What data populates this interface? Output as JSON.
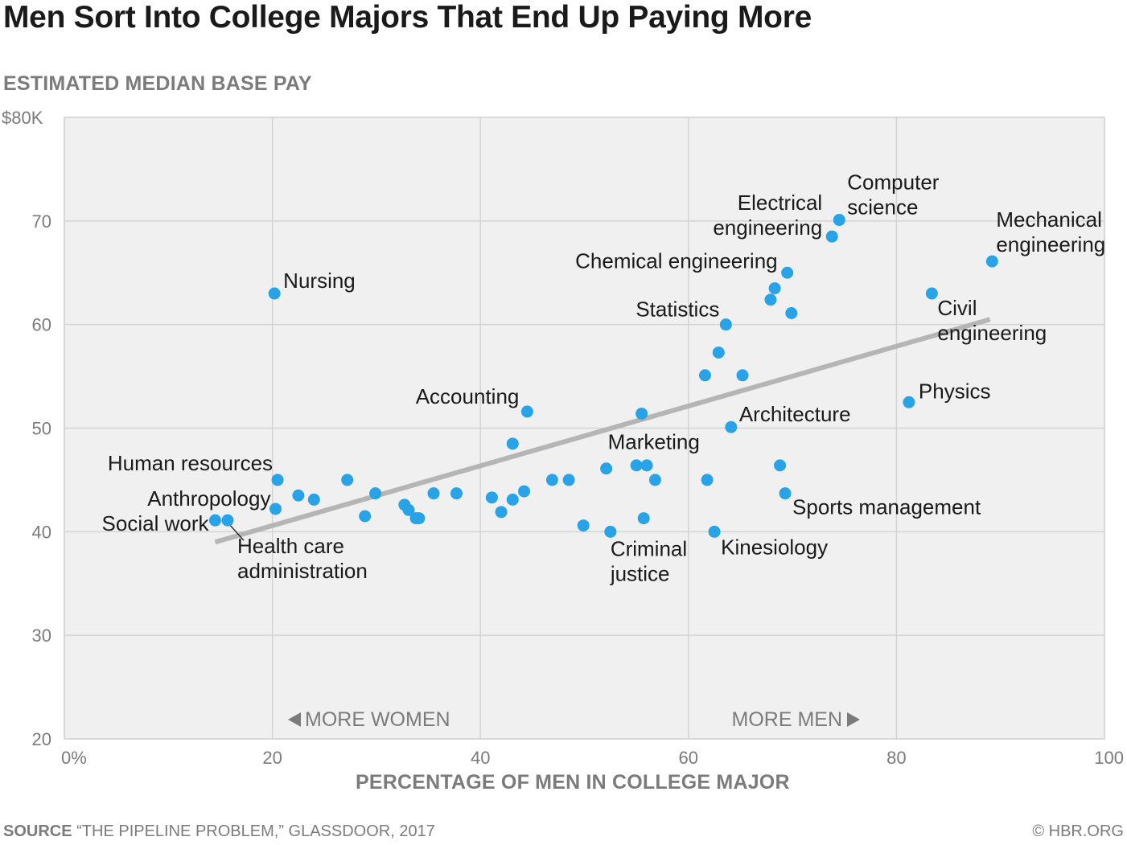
{
  "title": "Men Sort Into College Majors That End Up Paying More",
  "footer": {
    "source_label": "SOURCE",
    "source_text": "“THE PIPELINE PROBLEM,” GLASSDOOR, 2017",
    "credit": "© HBR.ORG"
  },
  "colors": {
    "dot": "#29a3e8",
    "trend": "#b5b5b5",
    "plot_bg": "#f0f0f0",
    "grid": "#d4d4d4"
  },
  "chart_data": {
    "type": "scatter",
    "ylabel": "ESTIMATED MEDIAN BASE PAY",
    "xlabel": "PERCENTAGE OF MEN IN COLLEGE MAJOR",
    "xlim": [
      0,
      100
    ],
    "ylim": [
      20,
      80
    ],
    "x_ticks": [
      {
        "value": 0,
        "label": "0%"
      },
      {
        "value": 20,
        "label": "20"
      },
      {
        "value": 40,
        "label": "40"
      },
      {
        "value": 60,
        "label": "60"
      },
      {
        "value": 80,
        "label": "80"
      },
      {
        "value": 100,
        "label": "100"
      }
    ],
    "y_ticks": [
      {
        "value": 20,
        "label": "20"
      },
      {
        "value": 30,
        "label": "30"
      },
      {
        "value": 40,
        "label": "40"
      },
      {
        "value": 50,
        "label": "50"
      },
      {
        "value": 60,
        "label": "60"
      },
      {
        "value": 70,
        "label": "70"
      },
      {
        "value": 80,
        "label": "$80K"
      }
    ],
    "grid": true,
    "annotations": {
      "more_women": "MORE WOMEN",
      "more_men": "MORE MEN"
    },
    "trend_line": {
      "x": [
        14.5,
        89
      ],
      "y": [
        39,
        60.5
      ]
    },
    "points": [
      {
        "x": 14.5,
        "y": 41.1,
        "label": "Social work",
        "lines": [
          "Social work"
        ],
        "anchor": "end",
        "dx": -8,
        "dy": 13
      },
      {
        "x": 15.7,
        "y": 41.1,
        "label": "Health care administration",
        "lines": [
          "Health care",
          "administration"
        ],
        "anchor": "start",
        "dx": 12,
        "dy": 41,
        "leader": true
      },
      {
        "x": 20.2,
        "y": 63.0,
        "label": "Nursing",
        "lines": [
          "Nursing"
        ],
        "anchor": "start",
        "dx": 11,
        "dy": -7
      },
      {
        "x": 20.5,
        "y": 45.0,
        "label": "Human resources",
        "lines": [
          "Human resources"
        ],
        "anchor": "end",
        "dx": -6,
        "dy": -12
      },
      {
        "x": 20.3,
        "y": 42.2,
        "label": "Anthropology",
        "lines": [
          "Anthropology"
        ],
        "anchor": "end",
        "dx": -6,
        "dy": -4
      },
      {
        "x": 22.5,
        "y": 43.5
      },
      {
        "x": 24.0,
        "y": 43.1
      },
      {
        "x": 27.2,
        "y": 45.0
      },
      {
        "x": 28.9,
        "y": 41.5
      },
      {
        "x": 29.9,
        "y": 43.7
      },
      {
        "x": 32.7,
        "y": 42.6
      },
      {
        "x": 33.1,
        "y": 42.1
      },
      {
        "x": 33.8,
        "y": 41.3
      },
      {
        "x": 34.1,
        "y": 41.3
      },
      {
        "x": 35.5,
        "y": 43.7
      },
      {
        "x": 37.7,
        "y": 43.7
      },
      {
        "x": 41.1,
        "y": 43.3
      },
      {
        "x": 42.0,
        "y": 41.9
      },
      {
        "x": 43.1,
        "y": 48.5
      },
      {
        "x": 43.1,
        "y": 43.1
      },
      {
        "x": 44.2,
        "y": 43.9
      },
      {
        "x": 44.5,
        "y": 51.6,
        "label": "Accounting",
        "lines": [
          "Accounting"
        ],
        "anchor": "end",
        "dx": -10,
        "dy": -10
      },
      {
        "x": 46.9,
        "y": 45.0
      },
      {
        "x": 48.5,
        "y": 45.0
      },
      {
        "x": 49.9,
        "y": 40.6
      },
      {
        "x": 52.1,
        "y": 46.1,
        "label": "Marketing",
        "lines": [
          "Marketing"
        ],
        "anchor": "start",
        "dx": 2,
        "dy": -24
      },
      {
        "x": 52.5,
        "y": 40.0,
        "label": "Criminal justice",
        "lines": [
          "Criminal",
          "justice"
        ],
        "anchor": "start",
        "dx": 0,
        "dy": 30
      },
      {
        "x": 55.0,
        "y": 46.4
      },
      {
        "x": 55.5,
        "y": 51.4
      },
      {
        "x": 55.7,
        "y": 41.3
      },
      {
        "x": 56.0,
        "y": 46.4
      },
      {
        "x": 56.8,
        "y": 45.0
      },
      {
        "x": 61.6,
        "y": 55.1
      },
      {
        "x": 61.8,
        "y": 45.0
      },
      {
        "x": 62.5,
        "y": 40.0,
        "label": "Kinesiology",
        "lines": [
          "Kinesiology"
        ],
        "anchor": "start",
        "dx": 8,
        "dy": 28
      },
      {
        "x": 62.9,
        "y": 57.3
      },
      {
        "x": 63.6,
        "y": 60.0,
        "label": "Statistics",
        "lines": [
          "Statistics"
        ],
        "anchor": "end",
        "dx": -8,
        "dy": -10
      },
      {
        "x": 64.1,
        "y": 50.1,
        "label": "Architecture",
        "lines": [
          "Architecture"
        ],
        "anchor": "start",
        "dx": 10,
        "dy": -7
      },
      {
        "x": 65.2,
        "y": 55.1
      },
      {
        "x": 67.9,
        "y": 62.4
      },
      {
        "x": 68.3,
        "y": 63.5
      },
      {
        "x": 68.8,
        "y": 46.4
      },
      {
        "x": 69.3,
        "y": 43.7,
        "label": "Sports management",
        "lines": [
          "Sports management"
        ],
        "anchor": "start",
        "dx": 9,
        "dy": 26
      },
      {
        "x": 69.5,
        "y": 65.0,
        "label": "Chemical engineering",
        "lines": [
          "Chemical engineering"
        ],
        "anchor": "end",
        "dx": -12,
        "dy": -6
      },
      {
        "x": 69.9,
        "y": 61.1
      },
      {
        "x": 73.8,
        "y": 68.5,
        "label": "Electrical engineering",
        "lines": [
          "Electrical",
          "engineering"
        ],
        "anchor": "end",
        "dx": -12,
        "dy": -33
      },
      {
        "x": 74.5,
        "y": 70.1,
        "label": "Computer science",
        "lines": [
          "Computer",
          "science"
        ],
        "anchor": "start",
        "dx": 10,
        "dy": -38
      },
      {
        "x": 81.2,
        "y": 52.5,
        "label": "Physics",
        "lines": [
          "Physics"
        ],
        "anchor": "start",
        "dx": 12,
        "dy": -5
      },
      {
        "x": 83.4,
        "y": 63.0,
        "label": "Civil engineering",
        "lines": [
          "Civil",
          "engineering"
        ],
        "anchor": "start",
        "dx": 7,
        "dy": 27
      },
      {
        "x": 89.2,
        "y": 66.1,
        "label": "Mechanical engineering",
        "lines": [
          "Mechanical",
          "engineering"
        ],
        "anchor": "start",
        "dx": 5,
        "dy": -43
      }
    ]
  }
}
